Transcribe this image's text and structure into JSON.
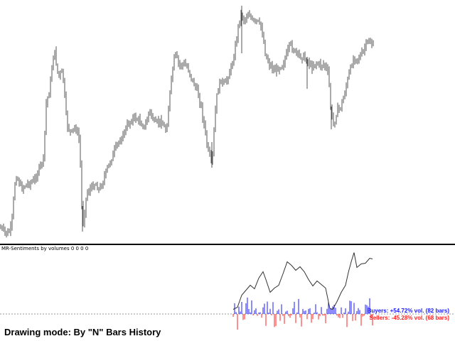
{
  "indicator": {
    "title": "MR-Sentiments by volumes 0 0 0 0",
    "buyers_text": "Buyers: +54.72% vol. (82 bars)",
    "sellers_text": "Sellers: -45.28% vol. (68 bars)",
    "buyers_color": "#1a1aff",
    "sellers_color": "#ff2020"
  },
  "caption": {
    "drawing_mode": "Drawing mode: By \"N\" Bars History"
  },
  "colors": {
    "price_bars": "#555555",
    "sentiment_line": "#333333",
    "baseline": "#999999",
    "separator": "#000000"
  }
}
